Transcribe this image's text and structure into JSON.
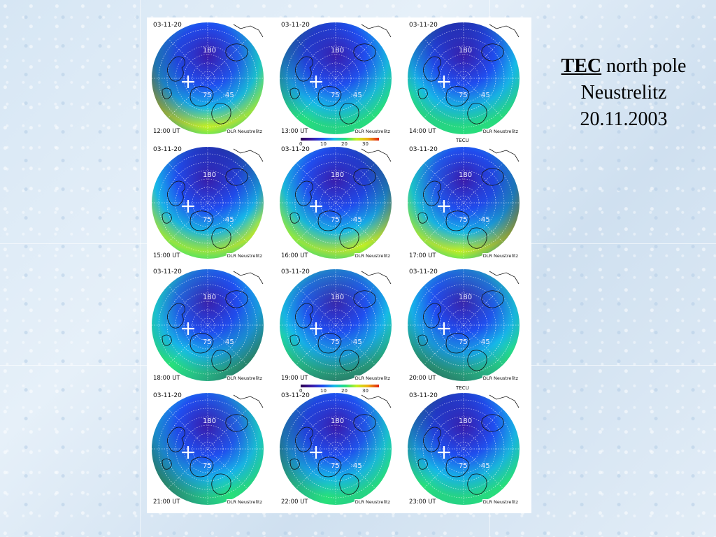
{
  "caption": {
    "title_bold": "TEC",
    "title_rest": " north pole",
    "line2": "Neustrelitz",
    "line3": "20.11.2003"
  },
  "colors": {
    "scale": [
      "#2a0050",
      "#3b1aa8",
      "#1f4ef0",
      "#16b9e8",
      "#27e07a",
      "#c4f020",
      "#f0b010",
      "#e02010"
    ]
  },
  "colorbar": {
    "ticks": [
      "0",
      "10",
      "20",
      "30"
    ],
    "unit": "TECU"
  },
  "panels": [
    {
      "date": "03-11-20",
      "time": "12:00 UT",
      "credit": "DLR Neustrelitz",
      "lat_label": "75",
      "lat_label2": "45",
      "lon_label": "180",
      "tec_level": 0.45
    },
    {
      "date": "03-11-20",
      "time": "13:00 UT",
      "credit": "DLR Neustrelitz",
      "lat_label": "75",
      "lat_label2": "45",
      "lon_label": "180",
      "tec_level": 0.38
    },
    {
      "date": "03-11-20",
      "time": "14:00 UT",
      "credit": "DLR Neustrelitz",
      "lat_label": "75",
      "lat_label2": "45",
      "lon_label": "180",
      "tec_level": 0.42
    },
    {
      "date": "03-11-20",
      "time": "15:00 UT",
      "credit": "DLR Neustrelitz",
      "lat_label": "75",
      "lat_label2": "45",
      "lon_label": "180",
      "tec_level": 0.45
    },
    {
      "date": "03-11-20",
      "time": "16:00 UT",
      "credit": "DLR Neustrelitz",
      "lat_label": "75",
      "lat_label2": "45",
      "lon_label": "180",
      "tec_level": 0.48
    },
    {
      "date": "03-11-20",
      "time": "17:00 UT",
      "credit": "DLR Neustrelitz",
      "lat_label": "75",
      "lat_label2": "45",
      "lon_label": "180",
      "tec_level": 0.5
    },
    {
      "date": "03-11-20",
      "time": "18:00 UT",
      "credit": "DLR Neustrelitz",
      "lat_label": "75",
      "lat_label2": "45",
      "lon_label": "180",
      "tec_level": 0.4
    },
    {
      "date": "03-11-20",
      "time": "19:00 UT",
      "credit": "DLR Neustrelitz",
      "lat_label": "75",
      "lat_label2": "45",
      "lon_label": "180",
      "tec_level": 0.4
    },
    {
      "date": "03-11-20",
      "time": "20:00 UT",
      "credit": "DLR Neustrelitz",
      "lat_label": "75",
      "lat_label2": "45",
      "lon_label": "180",
      "tec_level": 0.42
    },
    {
      "date": "03-11-20",
      "time": "21:00 UT",
      "credit": "DLR Neustrelitz",
      "lat_label": "75",
      "lat_label2": "",
      "lon_label": "180",
      "tec_level": 0.38
    },
    {
      "date": "03-11-20",
      "time": "22:00 UT",
      "credit": "DLR Neustrelitz",
      "lat_label": "75",
      "lat_label2": "45",
      "lon_label": "180",
      "tec_level": 0.32
    },
    {
      "date": "03-11-20",
      "time": "23:00 UT",
      "credit": "DLR Neustrelitz",
      "lat_label": "75",
      "lat_label2": "45",
      "lon_label": "180",
      "tec_level": 0.3
    }
  ]
}
